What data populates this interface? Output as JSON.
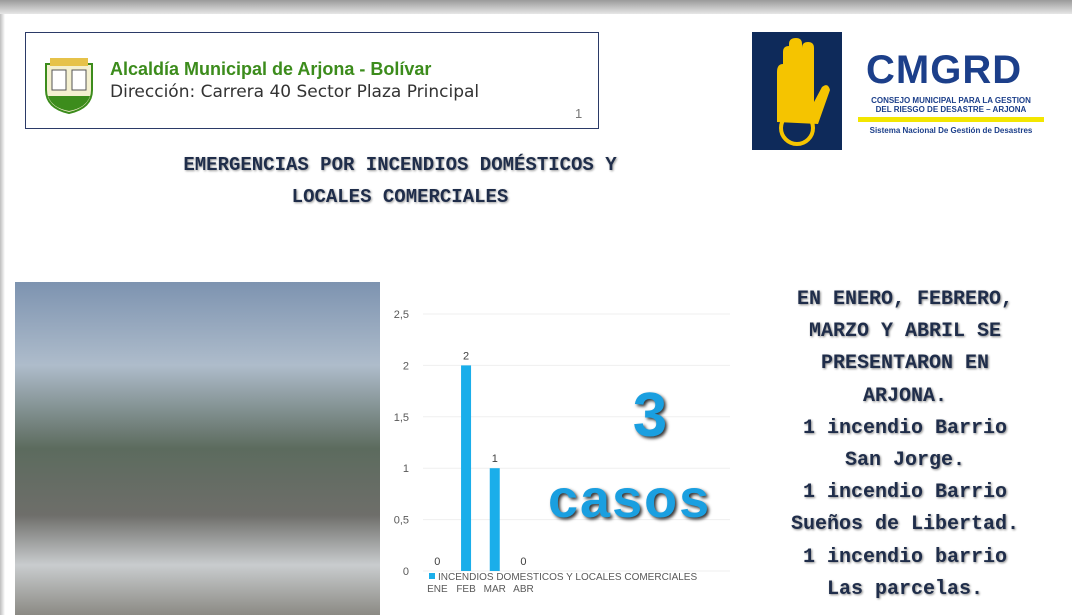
{
  "header": {
    "org_name": "Alcaldía Municipal de Arjona - Bolívar",
    "address": "Dirección: Carrera 40 Sector Plaza Principal",
    "page_number": "1"
  },
  "logo": {
    "acronym": "CMGRD",
    "line1": "CONSEJO MUNICIPAL PARA LA GESTION",
    "line2": "DEL RIESGO DE DESASTRE – ARJONA",
    "line3": "Sistema Nacional De Gestión de Desastres"
  },
  "title_lines": [
    "EMERGENCIAS POR INCENDIOS DOMÉSTICOS Y",
    "LOCALES COMERCIALES"
  ],
  "chart_data": {
    "type": "bar",
    "categories": [
      "ENE",
      "FEB",
      "MAR",
      "ABR"
    ],
    "series": [
      {
        "name": "INCENDIOS DOMESTICOS Y LOCALES COMERCIALES",
        "color": "#1aaeea",
        "values": [
          0,
          2,
          1,
          0
        ]
      }
    ],
    "ylim": [
      0,
      2.5
    ],
    "yticks": [
      0,
      {
        "value": 0.5,
        "label": "0,5"
      },
      1,
      {
        "value": 1.5,
        "label": "1,5"
      },
      2,
      {
        "value": 2.5,
        "label": "2,5"
      }
    ],
    "grid": true
  },
  "total": {
    "number": "3",
    "label": "casos"
  },
  "summary_lines": [
    "EN ENERO, FEBRERO,",
    "MARZO Y ABRIL SE",
    "PRESENTARON EN",
    "ARJONA.",
    "1 incendio Barrio",
    "San Jorge.",
    "1 incendio Barrio",
    "Sueños de Libertad.",
    "1 incendio barrio",
    "Las parcelas."
  ]
}
